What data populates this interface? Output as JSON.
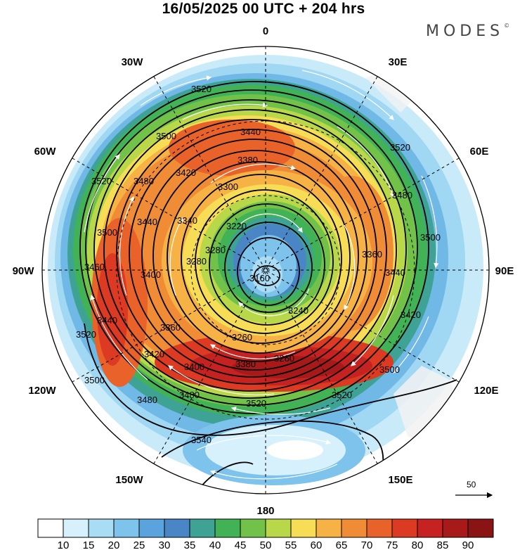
{
  "title": "16/05/2025  00 UTC  + 204 hrs",
  "brand": "MODES",
  "brand_mark": "©",
  "longitude_labels": [
    {
      "id": "lon-0",
      "text": "0"
    },
    {
      "id": "lon-30e",
      "text": "30E"
    },
    {
      "id": "lon-60e",
      "text": "60E"
    },
    {
      "id": "lon-90e",
      "text": "90E"
    },
    {
      "id": "lon-120e",
      "text": "120E"
    },
    {
      "id": "lon-150e",
      "text": "150E"
    },
    {
      "id": "lon-180",
      "text": "180"
    },
    {
      "id": "lon-150w",
      "text": "150W"
    },
    {
      "id": "lon-120w",
      "text": "120W"
    },
    {
      "id": "lon-90w",
      "text": "90W"
    },
    {
      "id": "lon-60w",
      "text": "60W"
    },
    {
      "id": "lon-30w",
      "text": "30W"
    }
  ],
  "contour_labels": [
    "3160",
    "3220",
    "3240",
    "3260",
    "3280",
    "3300",
    "3340",
    "3360",
    "3380",
    "3400",
    "3420",
    "3440",
    "3460",
    "3480",
    "3500",
    "3520",
    "3540"
  ],
  "wind_scale": {
    "label": "50",
    "unit_arrow": "reference vector"
  },
  "colorbar": {
    "labels": [
      "10",
      "15",
      "20",
      "25",
      "30",
      "35",
      "40",
      "45",
      "50",
      "55",
      "60",
      "65",
      "70",
      "75",
      "80",
      "85",
      "90"
    ],
    "colors": [
      "#ffffff",
      "#d6f1fb",
      "#a9ddf5",
      "#7ec3ec",
      "#5aa3dc",
      "#4a86c6",
      "#3ea395",
      "#42b256",
      "#72c24a",
      "#b8d84a",
      "#f7dd56",
      "#f6b244",
      "#f08c35",
      "#e9622a",
      "#dc3a22",
      "#c62222",
      "#a81a1a",
      "#8a1414"
    ]
  }
}
